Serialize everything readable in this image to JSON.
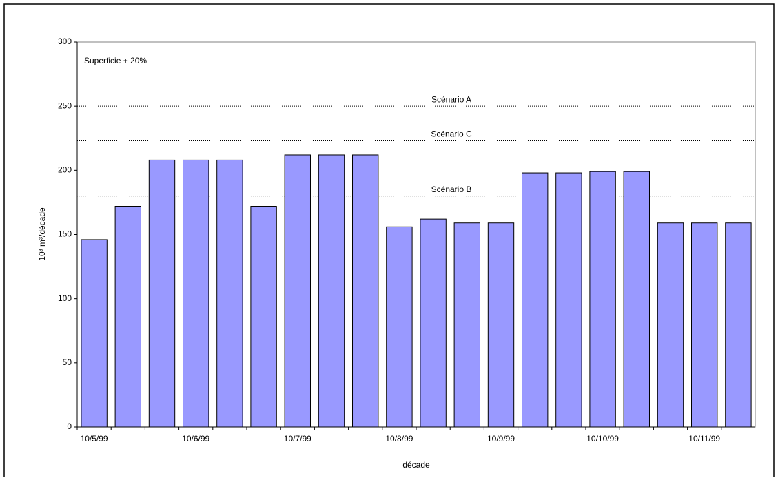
{
  "chart_data": {
    "type": "bar",
    "annotation": "Superficie + 20%",
    "x_label": "décade",
    "y_label": "10³ m³/décade",
    "categories": [
      "10/5/99",
      null,
      null,
      "10/6/99",
      null,
      null,
      "10/7/99",
      null,
      null,
      "10/8/99",
      null,
      null,
      "10/9/99",
      null,
      null,
      "10/10/99",
      null,
      null,
      "10/11/99",
      null
    ],
    "values": [
      146,
      172,
      208,
      208,
      208,
      172,
      212,
      212,
      212,
      156,
      162,
      159,
      159,
      198,
      198,
      199,
      199,
      159,
      159,
      159
    ],
    "color": "#9999ff",
    "ylim": [
      0,
      300
    ],
    "yticks": [
      0,
      50,
      100,
      150,
      200,
      250,
      300
    ],
    "reference_lines": [
      {
        "label": "Scénario A",
        "value": 250
      },
      {
        "label": "Scénario C",
        "value": 223
      },
      {
        "label": "Scénario B",
        "value": 180
      }
    ]
  }
}
